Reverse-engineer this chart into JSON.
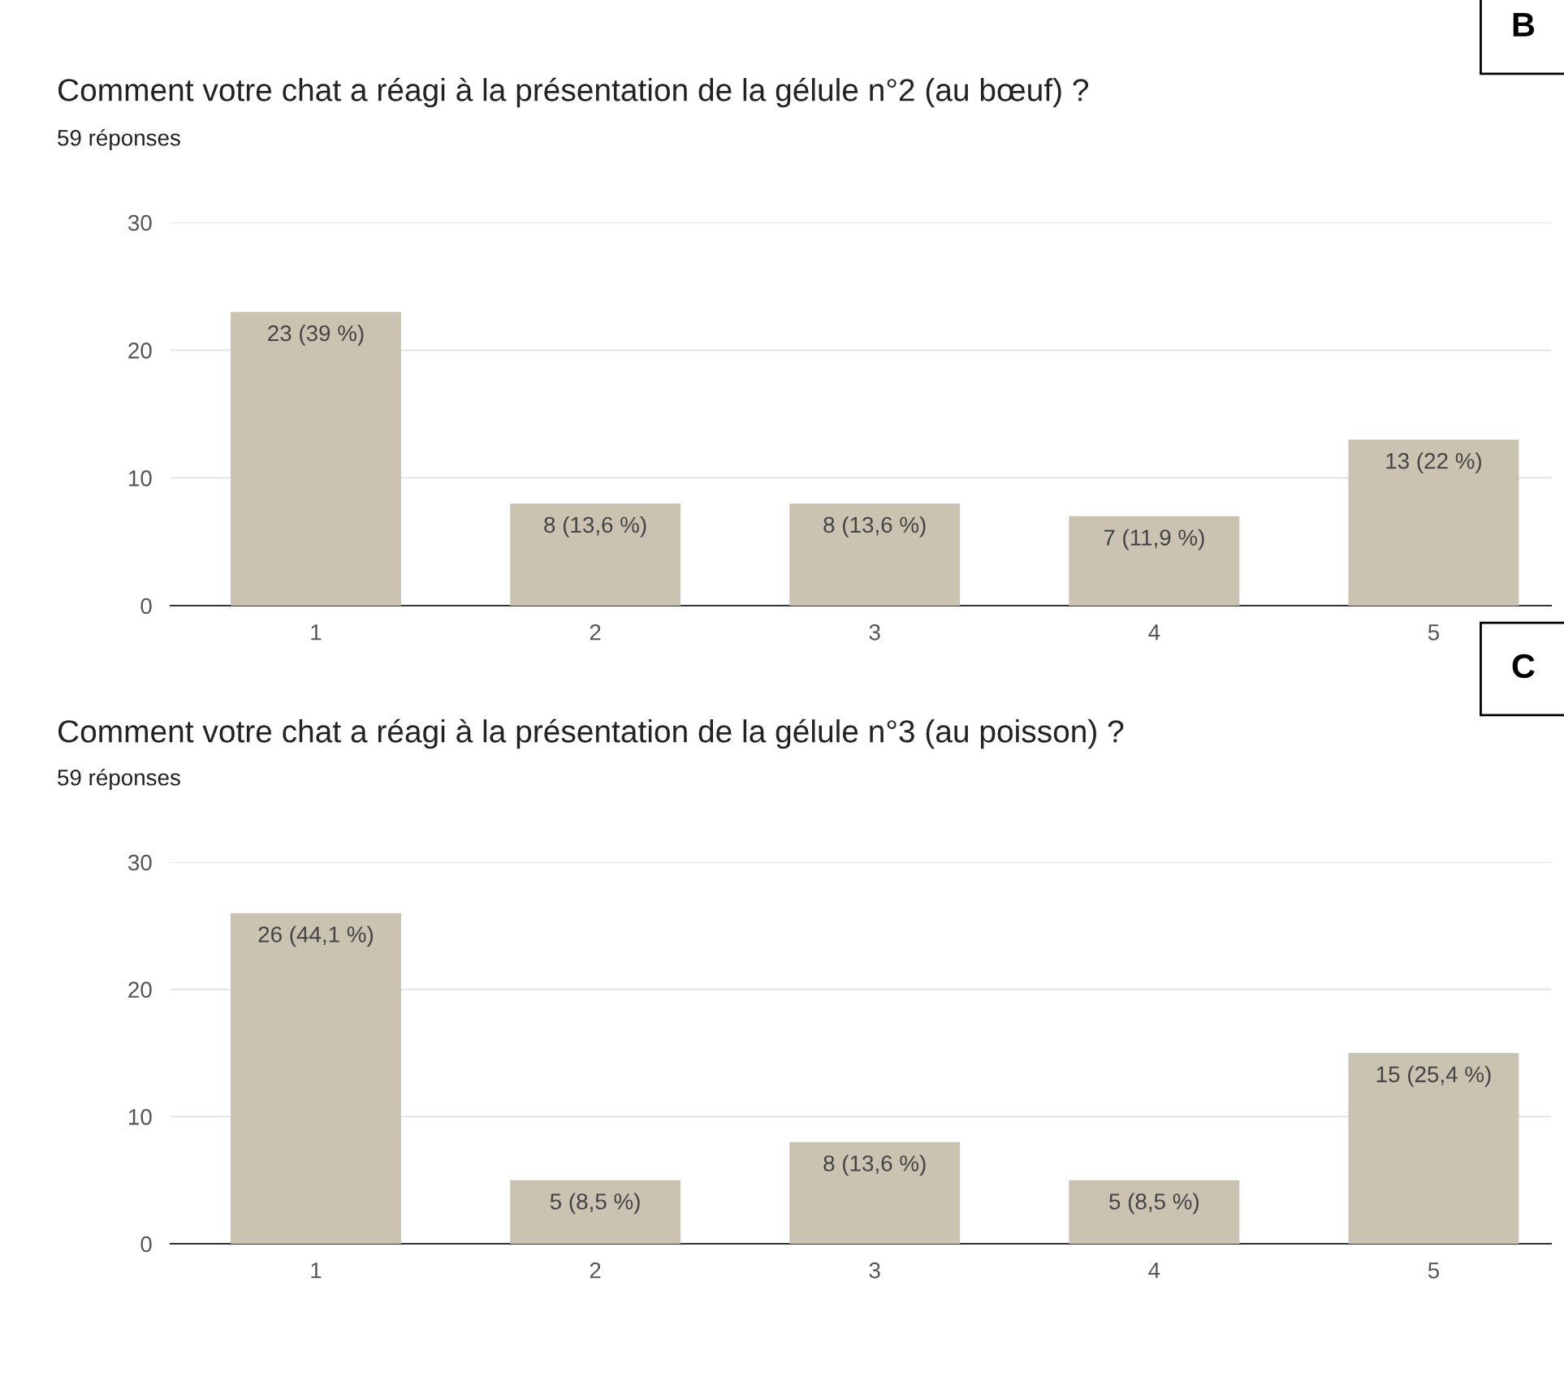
{
  "chart_data": [
    {
      "type": "bar",
      "title": "Comment votre chat a réagi à la présentation de la gélule n°2 (au bœuf) ?",
      "subtitle": "59 réponses",
      "annotations": [
        "B"
      ],
      "categories": [
        "1",
        "2",
        "3",
        "4",
        "5"
      ],
      "values": [
        23,
        8,
        8,
        7,
        13
      ],
      "value_labels": [
        "23 (39 %)",
        "8 (13,6 %)",
        "8 (13,6 %)",
        "7 (11,9 %)",
        "13 (22 %)"
      ],
      "color": "#cbc3b1",
      "ylim": [
        0,
        30
      ],
      "yticks": [
        0,
        10,
        20,
        30
      ],
      "grid": "y",
      "legend": false
    },
    {
      "type": "bar",
      "title": "Comment votre chat a réagi à la présentation de la gélule n°3 (au poisson) ?",
      "subtitle": "59 réponses",
      "annotations": [
        "C"
      ],
      "categories": [
        "1",
        "2",
        "3",
        "4",
        "5"
      ],
      "values": [
        26,
        5,
        8,
        5,
        15
      ],
      "value_labels": [
        "26 (44,1 %)",
        "5 (8,5 %)",
        "8 (13,6 %)",
        "5 (8,5 %)",
        "15 (25,4 %)"
      ],
      "color": "#cbc3b1",
      "ylim": [
        0,
        30
      ],
      "yticks": [
        0,
        10,
        20,
        30
      ],
      "grid": "y",
      "legend": false
    }
  ]
}
